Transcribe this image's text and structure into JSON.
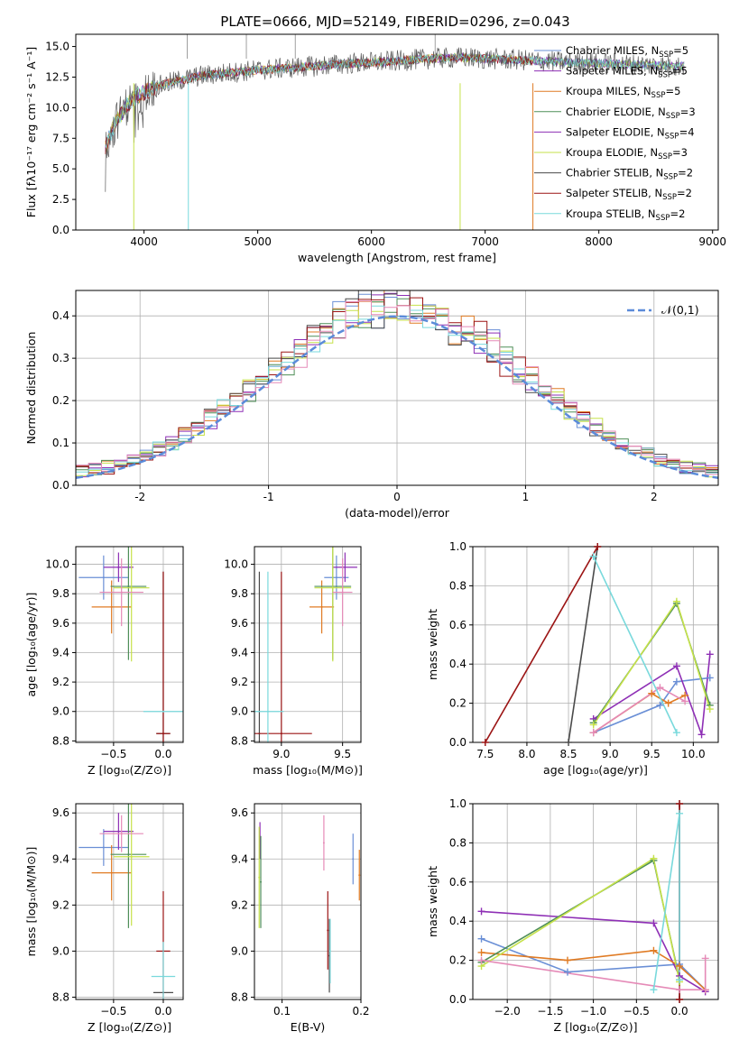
{
  "figure": {
    "title": "PLATE=0666, MJD=52149, FIBERID=0296, z=0.043"
  },
  "colors": {
    "blue": "#6a8fd6",
    "orange": "#e07b24",
    "green": "#4f8f58",
    "purple": "#8e2fb5",
    "yellow": "#c6e24a",
    "gray": "#4a4a4a",
    "darkred": "#9b1414",
    "cyan": "#79d9dc",
    "pink": "#e58ab7",
    "normal": "#5b8bd9"
  },
  "chart_data": [
    {
      "id": "spectrum",
      "type": "line",
      "xlabel": "wavelength [Angstrom, rest frame]",
      "ylabel": "Flux [fλ10⁻¹⁷ erg cm⁻² s⁻¹ A⁻¹]",
      "xlim": [
        3400,
        9050
      ],
      "ylim": [
        0,
        16
      ],
      "xticks": [
        4000,
        5000,
        6000,
        7000,
        8000,
        9000
      ],
      "yticks": [
        0.0,
        2.5,
        5.0,
        7.5,
        10.0,
        12.5,
        15.0
      ],
      "legend": "top-right",
      "series": [
        {
          "name": "Chabrier MILES, N_SSP=5",
          "color": "#6a8fd6"
        },
        {
          "name": "Salpeter MILES, N_SSP=5",
          "color": "#8e2fb5"
        },
        {
          "name": "Kroupa MILES, N_SSP=5",
          "color": "#e07b24"
        },
        {
          "name": "Chabrier ELODIE, N_SSP=3",
          "color": "#4f8f58"
        },
        {
          "name": "Salpeter ELODIE, N_SSP=4",
          "color": "#8e2fb5"
        },
        {
          "name": "Kroupa ELODIE, N_SSP=3",
          "color": "#c6e24a"
        },
        {
          "name": "Chabrier STELIB, N_SSP=2",
          "color": "#4a4a4a"
        },
        {
          "name": "Salpeter STELIB, N_SSP=2",
          "color": "#9b1414"
        },
        {
          "name": "Kroupa STELIB, N_SSP=2",
          "color": "#79d9dc"
        }
      ],
      "continuum": {
        "x": [
          3650,
          3750,
          3850,
          3950,
          4100,
          4300,
          4500,
          4700,
          4900,
          5200,
          5500,
          5800,
          6000,
          6200,
          6500,
          6800,
          7000,
          7300,
          7500,
          7800,
          8100,
          8400,
          8700
        ],
        "y": [
          6.5,
          8.8,
          10.2,
          11.0,
          11.7,
          12.2,
          12.6,
          12.8,
          13.0,
          13.2,
          13.4,
          13.6,
          13.7,
          13.8,
          14.0,
          14.1,
          14.0,
          13.9,
          13.8,
          13.7,
          13.6,
          13.5,
          13.4
        ]
      },
      "drop_lines_x": [
        3910,
        4390,
        6780,
        7420
      ]
    },
    {
      "id": "residuals",
      "type": "step",
      "xlabel": "(data-model)/error",
      "ylabel": "Normed distribution",
      "xlim": [
        -2.5,
        2.5
      ],
      "ylim": [
        0,
        0.46
      ],
      "xticks": [
        -2,
        -1,
        0,
        1,
        2
      ],
      "yticks": [
        0.0,
        0.1,
        0.2,
        0.3,
        0.4
      ],
      "legend": "top-right",
      "reference": {
        "name": "𝒩(0,1)",
        "mu": 0,
        "sigma": 1
      },
      "bin_width": 0.1,
      "bin_start": -2.5
    },
    {
      "id": "age_vs_Z",
      "type": "scatter",
      "xlabel": "Z [log₁₀(Z/Z⊙)]",
      "ylabel": "age  [log₁₀(age/yr)]",
      "xlim": [
        -0.88,
        0.2
      ],
      "ylim": [
        8.79,
        10.12
      ],
      "xticks": [
        -0.5,
        0.0
      ],
      "yticks": [
        8.8,
        9.0,
        9.2,
        9.4,
        9.6,
        9.8,
        10.0
      ],
      "points": [
        {
          "color": "#6a8fd6",
          "x": -0.6,
          "y": 9.91,
          "xerr": 0.25,
          "yerr": 0.15
        },
        {
          "color": "#8e2fb5",
          "x": -0.45,
          "y": 9.98,
          "xerr": 0.15,
          "yerr": 0.1
        },
        {
          "color": "#e07b24",
          "x": -0.52,
          "y": 9.71,
          "xerr": 0.2,
          "yerr": 0.18
        },
        {
          "color": "#4f8f58",
          "x": -0.35,
          "y": 9.85,
          "xerr": 0.18,
          "yerr": 0.5
        },
        {
          "color": "#c6e24a",
          "x": -0.32,
          "y": 9.84,
          "xerr": 0.18,
          "yerr": 0.5
        },
        {
          "color": "#e58ab7",
          "x": -0.42,
          "y": 9.81,
          "xerr": 0.22,
          "yerr": 0.23
        },
        {
          "color": "#4a4a4a",
          "x": 0.0,
          "y": 8.85,
          "xerr": 0.07,
          "yerr": 1.1
        },
        {
          "color": "#9b1414",
          "x": 0.0,
          "y": 8.85,
          "xerr": 0.07,
          "yerr": 1.1
        },
        {
          "color": "#79d9dc",
          "x": 0.0,
          "y": 9.0,
          "xerr": 0.2,
          "yerr": 0.0
        }
      ]
    },
    {
      "id": "age_vs_mass",
      "type": "scatter",
      "xlabel": "mass [log₁₀(M/M⊙)]",
      "ylabel": "",
      "xlim": [
        8.78,
        9.65
      ],
      "ylim": [
        8.79,
        10.12
      ],
      "xticks": [
        9.0,
        9.5
      ],
      "yticks": [
        8.8,
        9.0,
        9.2,
        9.4,
        9.6,
        9.8,
        10.0
      ],
      "points": [
        {
          "color": "#6a8fd6",
          "x": 9.45,
          "y": 9.91,
          "xerr": 0.1,
          "yerr": 0.15
        },
        {
          "color": "#8e2fb5",
          "x": 9.52,
          "y": 9.98,
          "xerr": 0.1,
          "yerr": 0.1
        },
        {
          "color": "#e07b24",
          "x": 9.33,
          "y": 9.71,
          "xerr": 0.1,
          "yerr": 0.18
        },
        {
          "color": "#4f8f58",
          "x": 9.42,
          "y": 9.85,
          "xerr": 0.15,
          "yerr": 0.5
        },
        {
          "color": "#c6e24a",
          "x": 9.42,
          "y": 9.84,
          "xerr": 0.15,
          "yerr": 0.5
        },
        {
          "color": "#e58ab7",
          "x": 9.5,
          "y": 9.81,
          "xerr": 0.08,
          "yerr": 0.23
        },
        {
          "color": "#4a4a4a",
          "x": 8.82,
          "y": 8.85,
          "xerr": 0.0,
          "yerr": 1.1
        },
        {
          "color": "#9b1414",
          "x": 9.0,
          "y": 8.85,
          "xerr": 0.25,
          "yerr": 1.1
        },
        {
          "color": "#79d9dc",
          "x": 8.89,
          "y": 9.0,
          "xerr": 0.13,
          "yerr": 0.95
        }
      ]
    },
    {
      "id": "weight_vs_age",
      "type": "line",
      "xlabel": "age  [log₁₀(age/yr)]",
      "ylabel": "mass weight",
      "xlim": [
        7.35,
        10.3
      ],
      "ylim": [
        0,
        1
      ],
      "xticks": [
        7.5,
        8.0,
        8.5,
        9.0,
        9.5,
        10.0
      ],
      "yticks": [
        0.0,
        0.2,
        0.4,
        0.6,
        0.8,
        1.0
      ],
      "series": [
        {
          "color": "#6a8fd6",
          "x": [
            8.8,
            9.6,
            9.8,
            10.2
          ],
          "y": [
            0.05,
            0.19,
            0.31,
            0.33
          ]
        },
        {
          "color": "#8e2fb5",
          "x": [
            8.8,
            9.8,
            10.1,
            10.2
          ],
          "y": [
            0.12,
            0.39,
            0.04,
            0.45
          ]
        },
        {
          "color": "#e07b24",
          "x": [
            8.8,
            9.5,
            9.7,
            9.9
          ],
          "y": [
            0.05,
            0.25,
            0.2,
            0.24
          ]
        },
        {
          "color": "#4f8f58",
          "x": [
            8.8,
            9.8,
            10.2
          ],
          "y": [
            0.1,
            0.71,
            0.19
          ]
        },
        {
          "color": "#c6e24a",
          "x": [
            8.8,
            9.8,
            10.2
          ],
          "y": [
            0.09,
            0.72,
            0.17
          ]
        },
        {
          "color": "#e58ab7",
          "x": [
            8.8,
            9.6,
            9.9
          ],
          "y": [
            0.05,
            0.28,
            0.21
          ]
        },
        {
          "color": "#4a4a4a",
          "x": [
            8.5,
            8.85
          ],
          "y": [
            0.0,
            1.0
          ]
        },
        {
          "color": "#9b1414",
          "x": [
            7.5,
            8.85
          ],
          "y": [
            0.0,
            1.0
          ]
        },
        {
          "color": "#79d9dc",
          "x": [
            8.8,
            9.8
          ],
          "y": [
            0.95,
            0.05
          ]
        }
      ]
    },
    {
      "id": "mass_vs_Z",
      "type": "scatter",
      "xlabel": "Z [log₁₀(Z/Z⊙)]",
      "ylabel": "mass [log₁₀(M/M⊙)]",
      "xlim": [
        -0.88,
        0.2
      ],
      "ylim": [
        8.79,
        9.64
      ],
      "xticks": [
        -0.5,
        0.0
      ],
      "yticks": [
        8.8,
        9.0,
        9.2,
        9.4,
        9.6
      ],
      "points": [
        {
          "color": "#6a8fd6",
          "x": -0.6,
          "y": 9.45,
          "xerr": 0.25,
          "yerr": 0.08
        },
        {
          "color": "#8e2fb5",
          "x": -0.45,
          "y": 9.52,
          "xerr": 0.15,
          "yerr": 0.08
        },
        {
          "color": "#e07b24",
          "x": -0.52,
          "y": 9.34,
          "xerr": 0.2,
          "yerr": 0.12
        },
        {
          "color": "#4f8f58",
          "x": -0.35,
          "y": 9.42,
          "xerr": 0.18,
          "yerr": 0.32
        },
        {
          "color": "#c6e24a",
          "x": -0.32,
          "y": 9.41,
          "xerr": 0.18,
          "yerr": 0.3
        },
        {
          "color": "#e58ab7",
          "x": -0.42,
          "y": 9.51,
          "xerr": 0.22,
          "yerr": 0.08
        },
        {
          "color": "#4a4a4a",
          "x": 0.0,
          "y": 8.82,
          "xerr": 0.1,
          "yerr": 0.0
        },
        {
          "color": "#9b1414",
          "x": 0.0,
          "y": 9.0,
          "xerr": 0.07,
          "yerr": 0.26
        },
        {
          "color": "#79d9dc",
          "x": 0.0,
          "y": 8.89,
          "xerr": 0.12,
          "yerr": 0.15
        }
      ]
    },
    {
      "id": "mass_vs_ebv",
      "type": "scatter",
      "xlabel": "E(B-V)",
      "ylabel": "",
      "xlim": [
        0.065,
        0.2
      ],
      "ylim": [
        8.79,
        9.64
      ],
      "xticks": [
        0.1,
        0.2
      ],
      "yticks": [
        8.8,
        9.0,
        9.2,
        9.4,
        9.6
      ],
      "points": [
        {
          "color": "#6a8fd6",
          "x": 0.19,
          "y": 9.4,
          "yerr": 0.11
        },
        {
          "color": "#8e2fb5",
          "x": 0.072,
          "y": 9.48,
          "yerr": 0.08
        },
        {
          "color": "#e07b24",
          "x": 0.198,
          "y": 9.33,
          "yerr": 0.11
        },
        {
          "color": "#4f8f58",
          "x": 0.073,
          "y": 9.3,
          "yerr": 0.2
        },
        {
          "color": "#c6e24a",
          "x": 0.071,
          "y": 9.32,
          "yerr": 0.22
        },
        {
          "color": "#e58ab7",
          "x": 0.153,
          "y": 9.47,
          "yerr": 0.12
        },
        {
          "color": "#4a4a4a",
          "x": 0.16,
          "y": 8.98,
          "yerr": 0.16
        },
        {
          "color": "#9b1414",
          "x": 0.158,
          "y": 9.09,
          "yerr": 0.17
        },
        {
          "color": "#79d9dc",
          "x": 0.161,
          "y": 9.0,
          "yerr": 0.14
        }
      ]
    },
    {
      "id": "weight_vs_Z",
      "type": "line",
      "xlabel": "Z [log₁₀(Z/Z⊙)]",
      "ylabel": "mass weight",
      "xlim": [
        -2.4,
        0.45
      ],
      "ylim": [
        0,
        1
      ],
      "xticks": [
        -2.0,
        -1.5,
        -1.0,
        -0.5,
        0.0
      ],
      "yticks": [
        0.0,
        0.2,
        0.4,
        0.6,
        0.8,
        1.0
      ],
      "series": [
        {
          "color": "#6a8fd6",
          "x": [
            -2.3,
            -1.3,
            0.0,
            0.3
          ],
          "y": [
            0.31,
            0.14,
            0.18,
            0.05
          ]
        },
        {
          "color": "#8e2fb5",
          "x": [
            -2.3,
            -0.3,
            0.0,
            0.3
          ],
          "y": [
            0.45,
            0.39,
            0.12,
            0.04
          ]
        },
        {
          "color": "#e07b24",
          "x": [
            -2.3,
            -1.3,
            -0.3,
            0.0,
            0.3
          ],
          "y": [
            0.24,
            0.2,
            0.25,
            0.17,
            0.05
          ]
        },
        {
          "color": "#4f8f58",
          "x": [
            -2.3,
            -0.3,
            0.0
          ],
          "y": [
            0.19,
            0.71,
            0.1
          ]
        },
        {
          "color": "#c6e24a",
          "x": [
            -2.3,
            -0.3,
            0.0
          ],
          "y": [
            0.17,
            0.72,
            0.09
          ]
        },
        {
          "color": "#e58ab7",
          "x": [
            -2.3,
            0.0,
            0.3,
            0.3
          ],
          "y": [
            0.2,
            0.05,
            0.05,
            0.21
          ]
        },
        {
          "color": "#4a4a4a",
          "x": [
            0.0,
            0.0
          ],
          "y": [
            0.0,
            1.0
          ]
        },
        {
          "color": "#9b1414",
          "x": [
            0.0,
            0.0
          ],
          "y": [
            0.0,
            1.0
          ]
        },
        {
          "color": "#79d9dc",
          "x": [
            -0.3,
            0.0,
            0.0
          ],
          "y": [
            0.05,
            0.95,
            0.1
          ]
        }
      ]
    }
  ]
}
